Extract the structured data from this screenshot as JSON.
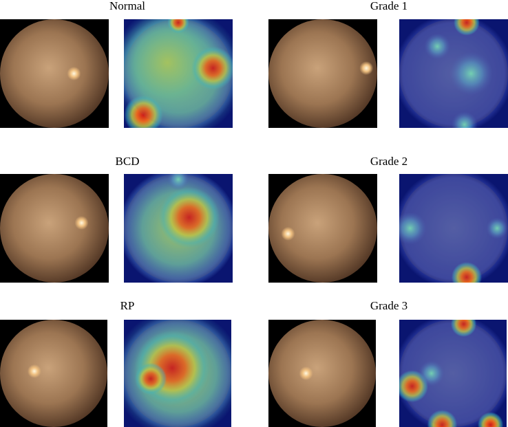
{
  "panels": [
    {
      "label": "Normal"
    },
    {
      "label": "Grade 1"
    },
    {
      "label": "BCD"
    },
    {
      "label": "Grade 2"
    },
    {
      "label": "RP"
    },
    {
      "label": "Grade 3"
    }
  ]
}
